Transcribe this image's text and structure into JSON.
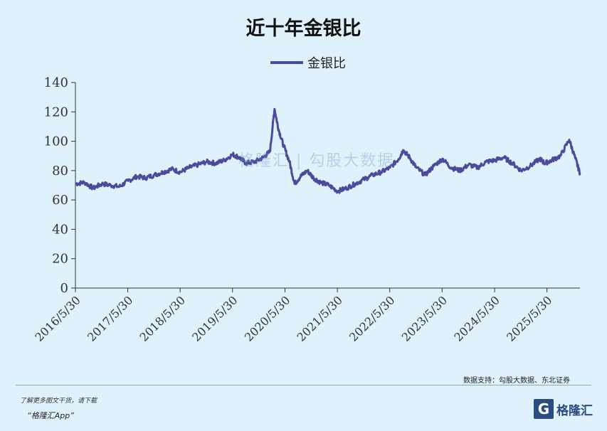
{
  "chart_data": {
    "type": "line",
    "title": "近十年金银比",
    "legend": "top-center",
    "legend_label": "金银比",
    "series_color": "#4c4a9a",
    "ylim": [
      0,
      140
    ],
    "yticks": [
      0,
      20,
      40,
      60,
      80,
      100,
      120,
      140
    ],
    "xlim": [
      "2016/5/30",
      "2026/1/15"
    ],
    "xticks": [
      "2016/5/30",
      "2017/5/30",
      "2018/5/30",
      "2019/5/30",
      "2020/5/30",
      "2021/5/30",
      "2022/5/30",
      "2023/5/30",
      "2024/5/30",
      "2025/5/30"
    ],
    "grid": false,
    "series": [
      {
        "x": [
          "2016/5/30",
          "2016/8/1",
          "2016/10/1",
          "2016/12/1",
          "2017/2/1",
          "2017/4/1",
          "2017/6/1",
          "2017/8/1",
          "2017/10/1",
          "2017/12/1",
          "2018/2/1",
          "2018/4/1",
          "2018/6/1",
          "2018/8/1",
          "2018/10/1",
          "2018/12/1",
          "2019/2/1",
          "2019/4/1",
          "2019/6/1",
          "2019/7/15",
          "2019/9/1",
          "2019/11/1",
          "2020/1/1",
          "2020/2/15",
          "2020/3/18",
          "2020/4/15",
          "2020/5/20",
          "2020/6/30",
          "2020/8/5",
          "2020/9/15",
          "2020/11/1",
          "2020/12/15",
          "2021/2/1",
          "2021/3/31",
          "2021/6/1",
          "2021/8/1",
          "2021/10/1",
          "2021/12/1",
          "2022/2/1",
          "2022/4/1",
          "2022/6/1",
          "2022/8/1",
          "2022/9/1",
          "2022/10/15",
          "2022/12/1",
          "2023/2/1",
          "2023/4/1",
          "2023/6/1",
          "2023/8/1",
          "2023/10/1",
          "2023/12/1",
          "2024/2/1",
          "2024/4/1",
          "2024/6/1",
          "2024/8/1",
          "2024/10/1",
          "2024/12/1",
          "2025/2/1",
          "2025/4/10",
          "2025/5/15",
          "2025/7/1",
          "2025/9/1",
          "2025/11/1",
          "2025/12/15",
          "2026/1/15"
        ],
        "values": [
          71,
          72,
          68,
          71,
          70,
          69,
          73,
          76,
          75,
          77,
          79,
          81,
          79,
          82,
          84,
          86,
          85,
          87,
          91,
          89,
          85,
          86,
          89,
          93,
          122,
          108,
          97,
          86,
          71,
          76,
          80,
          75,
          72,
          70,
          66,
          68,
          71,
          74,
          77,
          79,
          82,
          88,
          94,
          89,
          82,
          77,
          83,
          88,
          82,
          80,
          84,
          82,
          86,
          87,
          89,
          85,
          80,
          83,
          88,
          85,
          87,
          90,
          101,
          88,
          78
        ]
      }
    ]
  },
  "watermark": {
    "text": "格隆汇 | 勾股大数据"
  },
  "source_text": "数据支持：勾股大数据、东北证券",
  "footer": {
    "line1": "了解更多图文干货，请下载",
    "line2": "“格隆汇App”",
    "brand_icon": "G",
    "brand_text": "格隆汇"
  }
}
